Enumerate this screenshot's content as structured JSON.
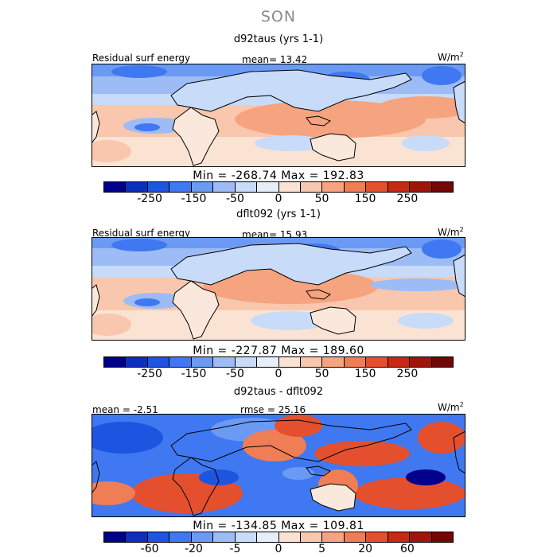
{
  "season": "SON",
  "colors": [
    "#00008b",
    "#0d2fbe",
    "#1e55e0",
    "#3f78f0",
    "#6b9af5",
    "#9dbcf5",
    "#c8dbf8",
    "#e6eef9",
    "#fbe3d4",
    "#f8c7ad",
    "#f5a47f",
    "#ef7d55",
    "#e4502d",
    "#c62a14",
    "#9e160a",
    "#740606"
  ],
  "land": "#fbe8dc",
  "panels": [
    {
      "title": "d92taus (yrs 1-1)",
      "left_label": "Residual surf energy",
      "center_label": "mean=   13.42",
      "unit_text": "W/m",
      "unit_sup": "2",
      "minmax": "Min = -268.74  Max = 192.83",
      "ticks": [
        "-250",
        "-150",
        "-50",
        "0",
        "50",
        "150",
        "250"
      ]
    },
    {
      "title": "dflt092 (yrs 1-1)",
      "left_label": "Residual surf energy",
      "center_label": "mean=   15.93",
      "unit_text": "W/m",
      "unit_sup": "2",
      "minmax": "Min = -227.87  Max = 189.60",
      "ticks": [
        "-250",
        "-150",
        "-50",
        "0",
        "50",
        "150",
        "250"
      ]
    },
    {
      "title": "d92taus - dflt092",
      "left_label": "mean =   -2.51",
      "center_label": "rmse =   25.16",
      "unit_text": "W/m",
      "unit_sup": "2",
      "minmax": "Min = -134.85  Max = 109.81",
      "ticks": [
        "-60",
        "-20",
        "-5",
        "0",
        "5",
        "20",
        "60"
      ]
    }
  ]
}
